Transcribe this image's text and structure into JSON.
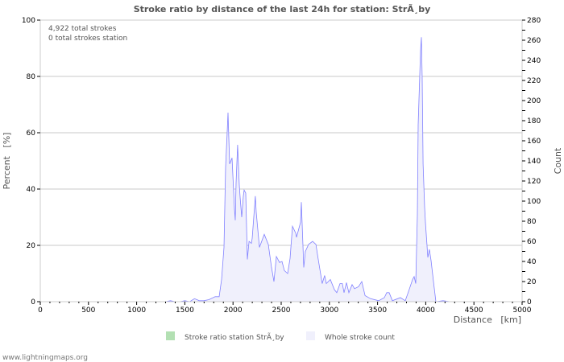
{
  "chart_data": {
    "type": "area",
    "title": "Stroke ratio by distance of the last 24h for station: StrÃ¸by",
    "xlabel": "Distance   [km]",
    "ylabel_left": "Percent   [%]",
    "ylabel_right": "Count",
    "xlim": [
      0,
      5000
    ],
    "ylim_left": [
      0,
      100
    ],
    "ylim_right": [
      0,
      280
    ],
    "x_ticks": [
      "0",
      "500",
      "1000",
      "1500",
      "2000",
      "2500",
      "3000",
      "3500",
      "4000",
      "4500",
      "5000"
    ],
    "y_left_ticks": [
      "0",
      "20",
      "40",
      "60",
      "80",
      "100"
    ],
    "y_right_ticks": [
      "0",
      "20",
      "40",
      "60",
      "80",
      "100",
      "120",
      "140",
      "160",
      "180",
      "200",
      "220",
      "240",
      "260",
      "280"
    ],
    "grid": true,
    "annotations": [
      "4,922 total strokes",
      "0 total strokes station"
    ],
    "legend": {
      "placement": "bottom",
      "items": [
        "Stroke ratio station StrÃ¸by",
        "Whole stroke count"
      ]
    },
    "colors": {
      "ratio": "#b3e0b3",
      "count_fill": "#f0f0fc",
      "count_line": "#8080ff",
      "grid": "#c8c8c8"
    },
    "series": [
      {
        "name": "Stroke ratio station StrÃ¸by",
        "axis": "left",
        "x": [],
        "y": []
      },
      {
        "name": "Whole stroke count",
        "axis": "right",
        "x": [
          1300,
          1350,
          1400,
          1450,
          1500,
          1550,
          1600,
          1650,
          1697,
          1750,
          1814,
          1856,
          1881,
          1906,
          1923,
          1940,
          1948,
          1965,
          1990,
          2015,
          2023,
          2032,
          2048,
          2065,
          2074,
          2090,
          2107,
          2115,
          2132,
          2149,
          2166,
          2191,
          2199,
          2232,
          2241,
          2274,
          2324,
          2366,
          2400,
          2425,
          2450,
          2483,
          2508,
          2533,
          2567,
          2592,
          2617,
          2651,
          2659,
          2701,
          2709,
          2734,
          2751,
          2784,
          2826,
          2860,
          2885,
          2926,
          2951,
          2968,
          3010,
          3052,
          3077,
          3110,
          3135,
          3152,
          3177,
          3202,
          3236,
          3261,
          3303,
          3336,
          3370,
          3428,
          3512,
          3570,
          3595,
          3620,
          3654,
          3737,
          3788,
          3821,
          3863,
          3880,
          3896,
          3913,
          3921,
          3938,
          3946,
          3955,
          3963,
          3972,
          3988,
          3997,
          4022,
          4038,
          4055,
          4080,
          4105,
          4180,
          4250,
          5000
        ],
        "y": [
          0,
          1,
          0,
          0,
          1,
          0,
          3,
          1,
          1,
          2,
          5,
          5,
          22,
          54,
          134,
          169,
          188,
          137,
          143,
          92,
          81,
          118,
          156,
          116,
          103,
          84,
          105,
          111,
          108,
          42,
          60,
          58,
          63,
          105,
          89,
          54,
          67,
          57,
          34,
          20,
          45,
          39,
          40,
          31,
          28,
          43,
          75,
          68,
          64,
          79,
          99,
          34,
          50,
          57,
          60,
          57,
          42,
          18,
          26,
          18,
          22,
          12,
          9,
          18,
          18,
          9,
          19,
          9,
          17,
          13,
          15,
          20,
          6,
          3,
          1,
          4,
          9,
          9,
          1,
          4,
          1,
          10,
          22,
          25,
          18,
          86,
          176,
          226,
          249,
          263,
          222,
          137,
          94,
          79,
          44,
          52,
          41,
          20,
          0,
          1,
          0,
          0
        ]
      }
    ]
  },
  "footer": "www.lightningmaps.org"
}
